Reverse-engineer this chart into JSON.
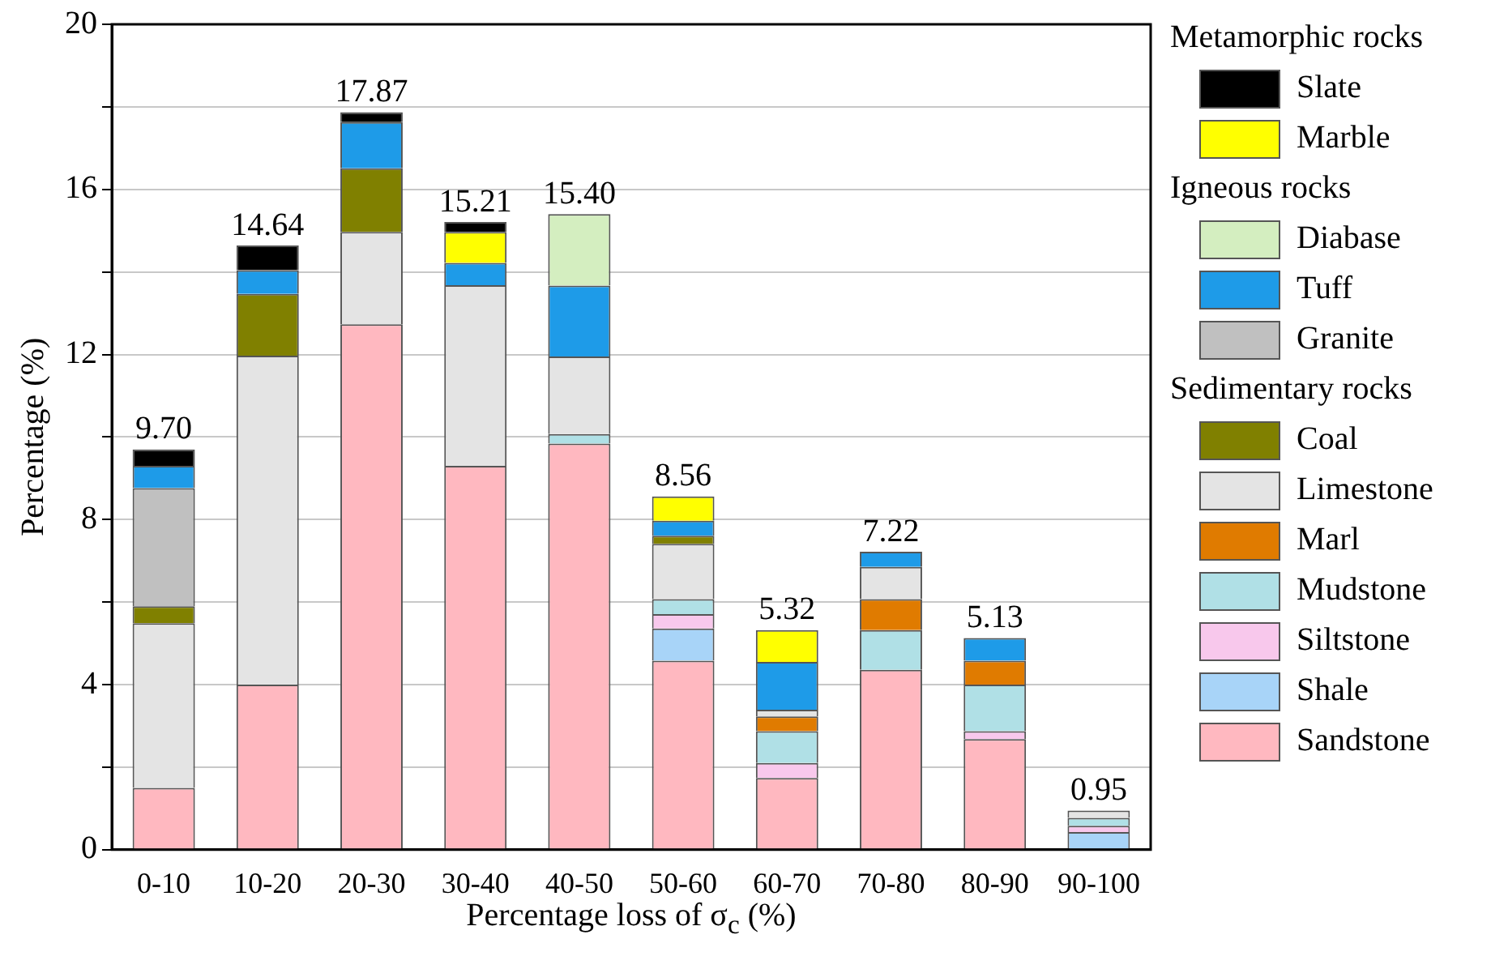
{
  "chart_data": {
    "type": "bar",
    "stacked": true,
    "xlabel": "Percentage loss of σ$_{c}$ (%)",
    "ylabel": "Percentage (%)",
    "categories": [
      "0-10",
      "10-20",
      "20-30",
      "30-40",
      "40-50",
      "50-60",
      "60-70",
      "70-80",
      "80-90",
      "90-100"
    ],
    "series": [
      {
        "name": "Sandstone",
        "color": "#ffb8c0",
        "values": [
          1.5,
          4.0,
          12.73,
          9.3,
          9.84,
          4.58,
          1.74,
          4.36,
          2.68,
          null
        ]
      },
      {
        "name": "Shale",
        "color": "#a8d4f8",
        "values": [
          null,
          null,
          null,
          null,
          null,
          0.78,
          null,
          null,
          null,
          0.43
        ]
      },
      {
        "name": "Siltstone",
        "color": "#f8c8ec",
        "values": [
          null,
          null,
          null,
          null,
          null,
          0.35,
          0.36,
          null,
          0.19,
          0.15
        ]
      },
      {
        "name": "Mudstone",
        "color": "#b0e0e6",
        "values": [
          null,
          null,
          null,
          null,
          0.23,
          0.36,
          0.77,
          0.96,
          1.13,
          0.19
        ]
      },
      {
        "name": "Marl",
        "color": "#e07b00",
        "values": [
          null,
          null,
          null,
          null,
          null,
          null,
          0.36,
          0.75,
          0.58,
          null
        ]
      },
      {
        "name": "Limestone",
        "color": "#e4e4e4",
        "values": [
          3.99,
          7.97,
          2.24,
          4.38,
          1.88,
          1.34,
          0.16,
          0.78,
          null,
          0.18
        ]
      },
      {
        "name": "Coal",
        "color": "#808000",
        "values": [
          0.41,
          1.5,
          1.54,
          null,
          null,
          0.2,
          null,
          null,
          null,
          null
        ]
      },
      {
        "name": "Granite",
        "color": "#c0c0c0",
        "values": [
          2.86,
          null,
          null,
          null,
          null,
          null,
          null,
          null,
          null,
          null
        ]
      },
      {
        "name": "Tuff",
        "color": "#1e9be8",
        "values": [
          0.54,
          0.57,
          1.12,
          0.54,
          1.72,
          0.36,
          1.16,
          0.37,
          0.55,
          null
        ]
      },
      {
        "name": "Diabase",
        "color": "#d4eec0",
        "values": [
          null,
          null,
          null,
          null,
          1.73,
          null,
          null,
          null,
          null,
          null
        ]
      },
      {
        "name": "Marble",
        "color": "#ffff00",
        "values": [
          null,
          null,
          null,
          0.75,
          null,
          0.59,
          0.77,
          null,
          null,
          null
        ]
      },
      {
        "name": "Slate",
        "color": "#000000",
        "values": [
          0.4,
          0.6,
          0.24,
          0.24,
          null,
          null,
          null,
          null,
          null,
          null
        ]
      }
    ],
    "totals": [
      "9.70",
      "14.64",
      "17.87",
      "15.21",
      "15.40",
      "8.56",
      "5.32",
      "7.22",
      "5.13",
      "0.95"
    ],
    "ylim": [
      0,
      20
    ],
    "yticks": [
      0,
      {
        "value": 2,
        "label": null
      },
      4,
      {
        "value": 6,
        "label": null
      },
      8,
      {
        "value": 10,
        "label": null
      },
      12,
      {
        "value": 14,
        "label": null
      },
      16,
      {
        "value": 18,
        "label": null
      },
      20
    ],
    "grid": "y",
    "legend": "right",
    "annotations": [
      "Metamorphic rocks",
      "Igneous rocks",
      "Sedimentary rocks"
    ]
  }
}
